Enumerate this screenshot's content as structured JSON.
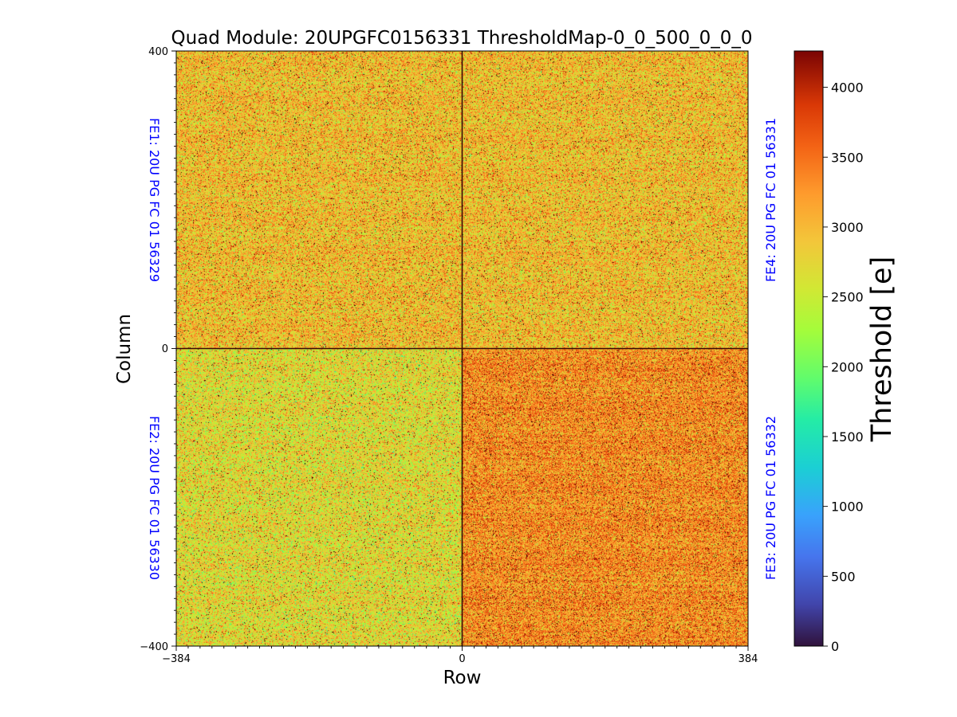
{
  "chart_data": {
    "type": "heatmap",
    "title": "Quad Module: 20UPGFC0156331 ThresholdMap-0_0_500_0_0_0",
    "xlabel": "Row",
    "ylabel": "Column",
    "xlim": [
      -384,
      384
    ],
    "ylim": [
      -400,
      400
    ],
    "x_ticks": [
      "−384",
      "0",
      "384"
    ],
    "y_ticks": [
      "400",
      "0",
      "−400"
    ],
    "colorbar": {
      "label": "Threshold [e]",
      "range": [
        0,
        4260
      ],
      "colormap": "turbo",
      "ticks": [
        "0",
        "500",
        "1000",
        "1500",
        "2000",
        "2500",
        "3000",
        "3500",
        "4000"
      ]
    },
    "front_ends": [
      {
        "label": "FE1: 20U PG FC 01 56329",
        "quadrant": "top-left",
        "typical_threshold": 2950
      },
      {
        "label": "FE4: 20U PG FC 01 56331",
        "quadrant": "top-right",
        "typical_threshold": 2950
      },
      {
        "label": "FE2: 20U PG FC 01 56330",
        "quadrant": "bottom-left",
        "typical_threshold": 2700
      },
      {
        "label": "FE3: 20U PG FC 01 56332",
        "quadrant": "bottom-right",
        "typical_threshold": 3300
      }
    ],
    "label_color": "#0000ff"
  }
}
